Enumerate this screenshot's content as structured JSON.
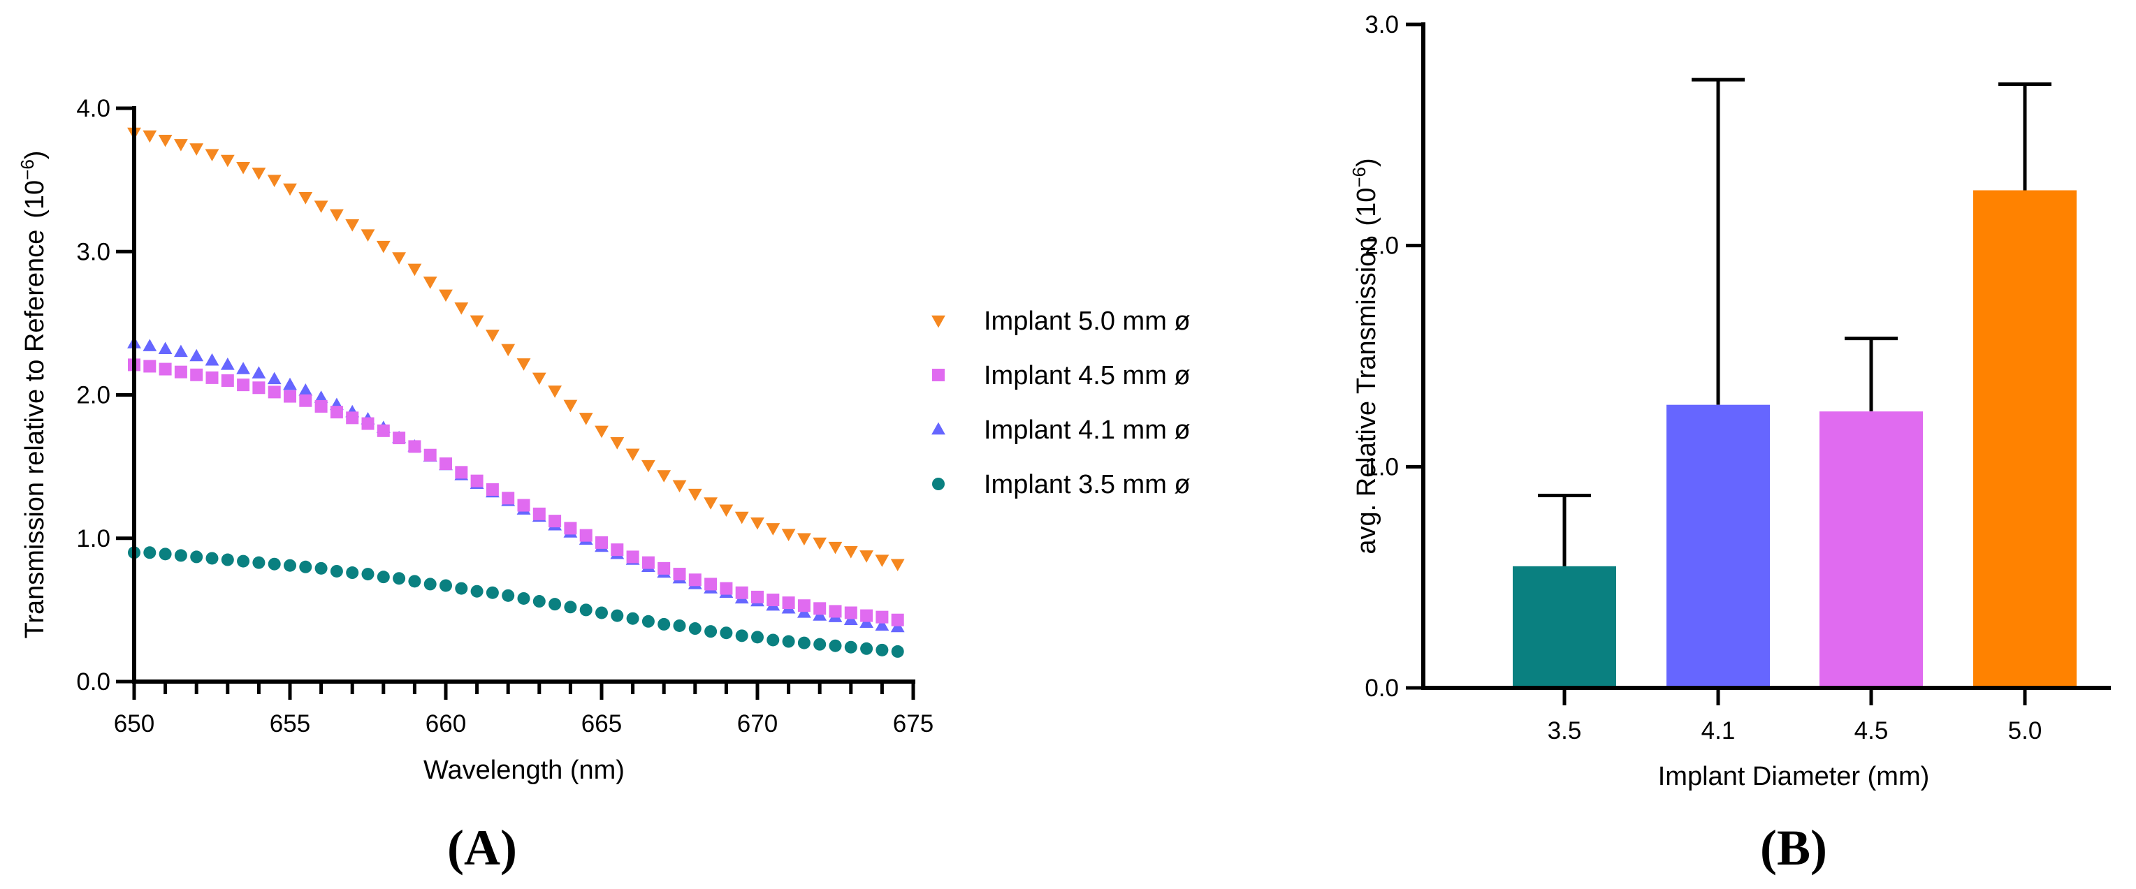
{
  "chart_data": [
    {
      "type": "scatter",
      "panel_label": "(A)",
      "title": "",
      "xlabel": "Wavelength (nm)",
      "ylabel": "Transmission relative to Reference",
      "ylabel_exponent": "(10",
      "ylabel_exponent_sup": "−6",
      "ylabel_exponent_close": ")",
      "xlim": [
        650,
        675
      ],
      "ylim": [
        0,
        4
      ],
      "x_ticks": [
        "650",
        "655",
        "660",
        "665",
        "670",
        "675"
      ],
      "y_ticks": [
        "0.0",
        "1.0",
        "2.0",
        "3.0",
        "4.0"
      ],
      "x": [
        650.0,
        650.5,
        651.0,
        651.5,
        652.0,
        652.5,
        653.0,
        653.5,
        654.0,
        654.5,
        655.0,
        655.5,
        656.0,
        656.5,
        657.0,
        657.5,
        658.0,
        658.5,
        659.0,
        659.5,
        660.0,
        660.5,
        661.0,
        661.5,
        662.0,
        662.5,
        663.0,
        663.5,
        664.0,
        664.5,
        665.0,
        665.5,
        666.0,
        666.5,
        667.0,
        667.5,
        668.0,
        668.5,
        669.0,
        669.5,
        670.0,
        670.5,
        671.0,
        671.5,
        672.0,
        672.5,
        673.0,
        673.5,
        674.0,
        674.5
      ],
      "series": [
        {
          "name": "Implant 5.0 mm ø",
          "marker": "triangle-down",
          "color": "#f5871f",
          "values": [
            3.83,
            3.81,
            3.78,
            3.75,
            3.72,
            3.68,
            3.64,
            3.59,
            3.55,
            3.5,
            3.44,
            3.38,
            3.32,
            3.26,
            3.19,
            3.12,
            3.04,
            2.96,
            2.88,
            2.79,
            2.7,
            2.61,
            2.52,
            2.42,
            2.32,
            2.22,
            2.12,
            2.03,
            1.93,
            1.84,
            1.75,
            1.67,
            1.59,
            1.51,
            1.44,
            1.37,
            1.31,
            1.25,
            1.2,
            1.15,
            1.11,
            1.07,
            1.03,
            1.0,
            0.97,
            0.94,
            0.91,
            0.88,
            0.85,
            0.82
          ]
        },
        {
          "name": "Implant 4.5 mm ø",
          "marker": "square",
          "color": "#e06bf0",
          "values": [
            2.21,
            2.2,
            2.18,
            2.16,
            2.14,
            2.12,
            2.1,
            2.07,
            2.05,
            2.02,
            1.99,
            1.96,
            1.92,
            1.88,
            1.84,
            1.8,
            1.75,
            1.7,
            1.64,
            1.58,
            1.52,
            1.46,
            1.4,
            1.34,
            1.28,
            1.23,
            1.17,
            1.12,
            1.07,
            1.02,
            0.97,
            0.92,
            0.87,
            0.83,
            0.79,
            0.75,
            0.71,
            0.68,
            0.65,
            0.62,
            0.59,
            0.57,
            0.55,
            0.53,
            0.51,
            0.49,
            0.48,
            0.46,
            0.45,
            0.43
          ]
        },
        {
          "name": "Implant 4.1 mm ø",
          "marker": "triangle-up",
          "color": "#6666ff",
          "values": [
            2.36,
            2.34,
            2.32,
            2.3,
            2.27,
            2.24,
            2.21,
            2.18,
            2.15,
            2.11,
            2.07,
            2.03,
            1.98,
            1.93,
            1.88,
            1.83,
            1.77,
            1.7,
            1.64,
            1.57,
            1.51,
            1.44,
            1.38,
            1.32,
            1.26,
            1.2,
            1.15,
            1.09,
            1.04,
            0.99,
            0.94,
            0.89,
            0.85,
            0.8,
            0.76,
            0.72,
            0.68,
            0.65,
            0.62,
            0.58,
            0.56,
            0.53,
            0.51,
            0.48,
            0.46,
            0.45,
            0.43,
            0.41,
            0.39,
            0.38
          ]
        },
        {
          "name": "Implant 3.5 mm ø",
          "marker": "circle",
          "color": "#0a8080",
          "values": [
            0.9,
            0.9,
            0.89,
            0.88,
            0.87,
            0.86,
            0.85,
            0.84,
            0.83,
            0.82,
            0.81,
            0.8,
            0.79,
            0.77,
            0.76,
            0.75,
            0.73,
            0.72,
            0.7,
            0.68,
            0.67,
            0.65,
            0.63,
            0.62,
            0.6,
            0.58,
            0.56,
            0.54,
            0.52,
            0.5,
            0.48,
            0.46,
            0.44,
            0.42,
            0.4,
            0.39,
            0.37,
            0.35,
            0.34,
            0.32,
            0.31,
            0.29,
            0.28,
            0.27,
            0.26,
            0.25,
            0.24,
            0.23,
            0.22,
            0.21
          ]
        }
      ],
      "legend": "right"
    },
    {
      "type": "bar",
      "panel_label": "(B)",
      "title": "",
      "xlabel": "Implant Diameter (mm)",
      "ylabel": "avg. Relative Transmission",
      "ylabel_exponent": "(10",
      "ylabel_exponent_sup": "−6",
      "ylabel_exponent_close": ")",
      "ylim": [
        0,
        3
      ],
      "y_ticks": [
        "0.0",
        "1.0",
        "2.0",
        "3.0"
      ],
      "categories": [
        "3.5",
        "4.1",
        "4.5",
        "5.0"
      ],
      "values": [
        0.55,
        1.28,
        1.25,
        2.25
      ],
      "error_upper": [
        0.32,
        1.47,
        0.33,
        0.48
      ],
      "colors": [
        "#0a8080",
        "#6666ff",
        "#e06bf0",
        "#ff8200"
      ]
    }
  ]
}
